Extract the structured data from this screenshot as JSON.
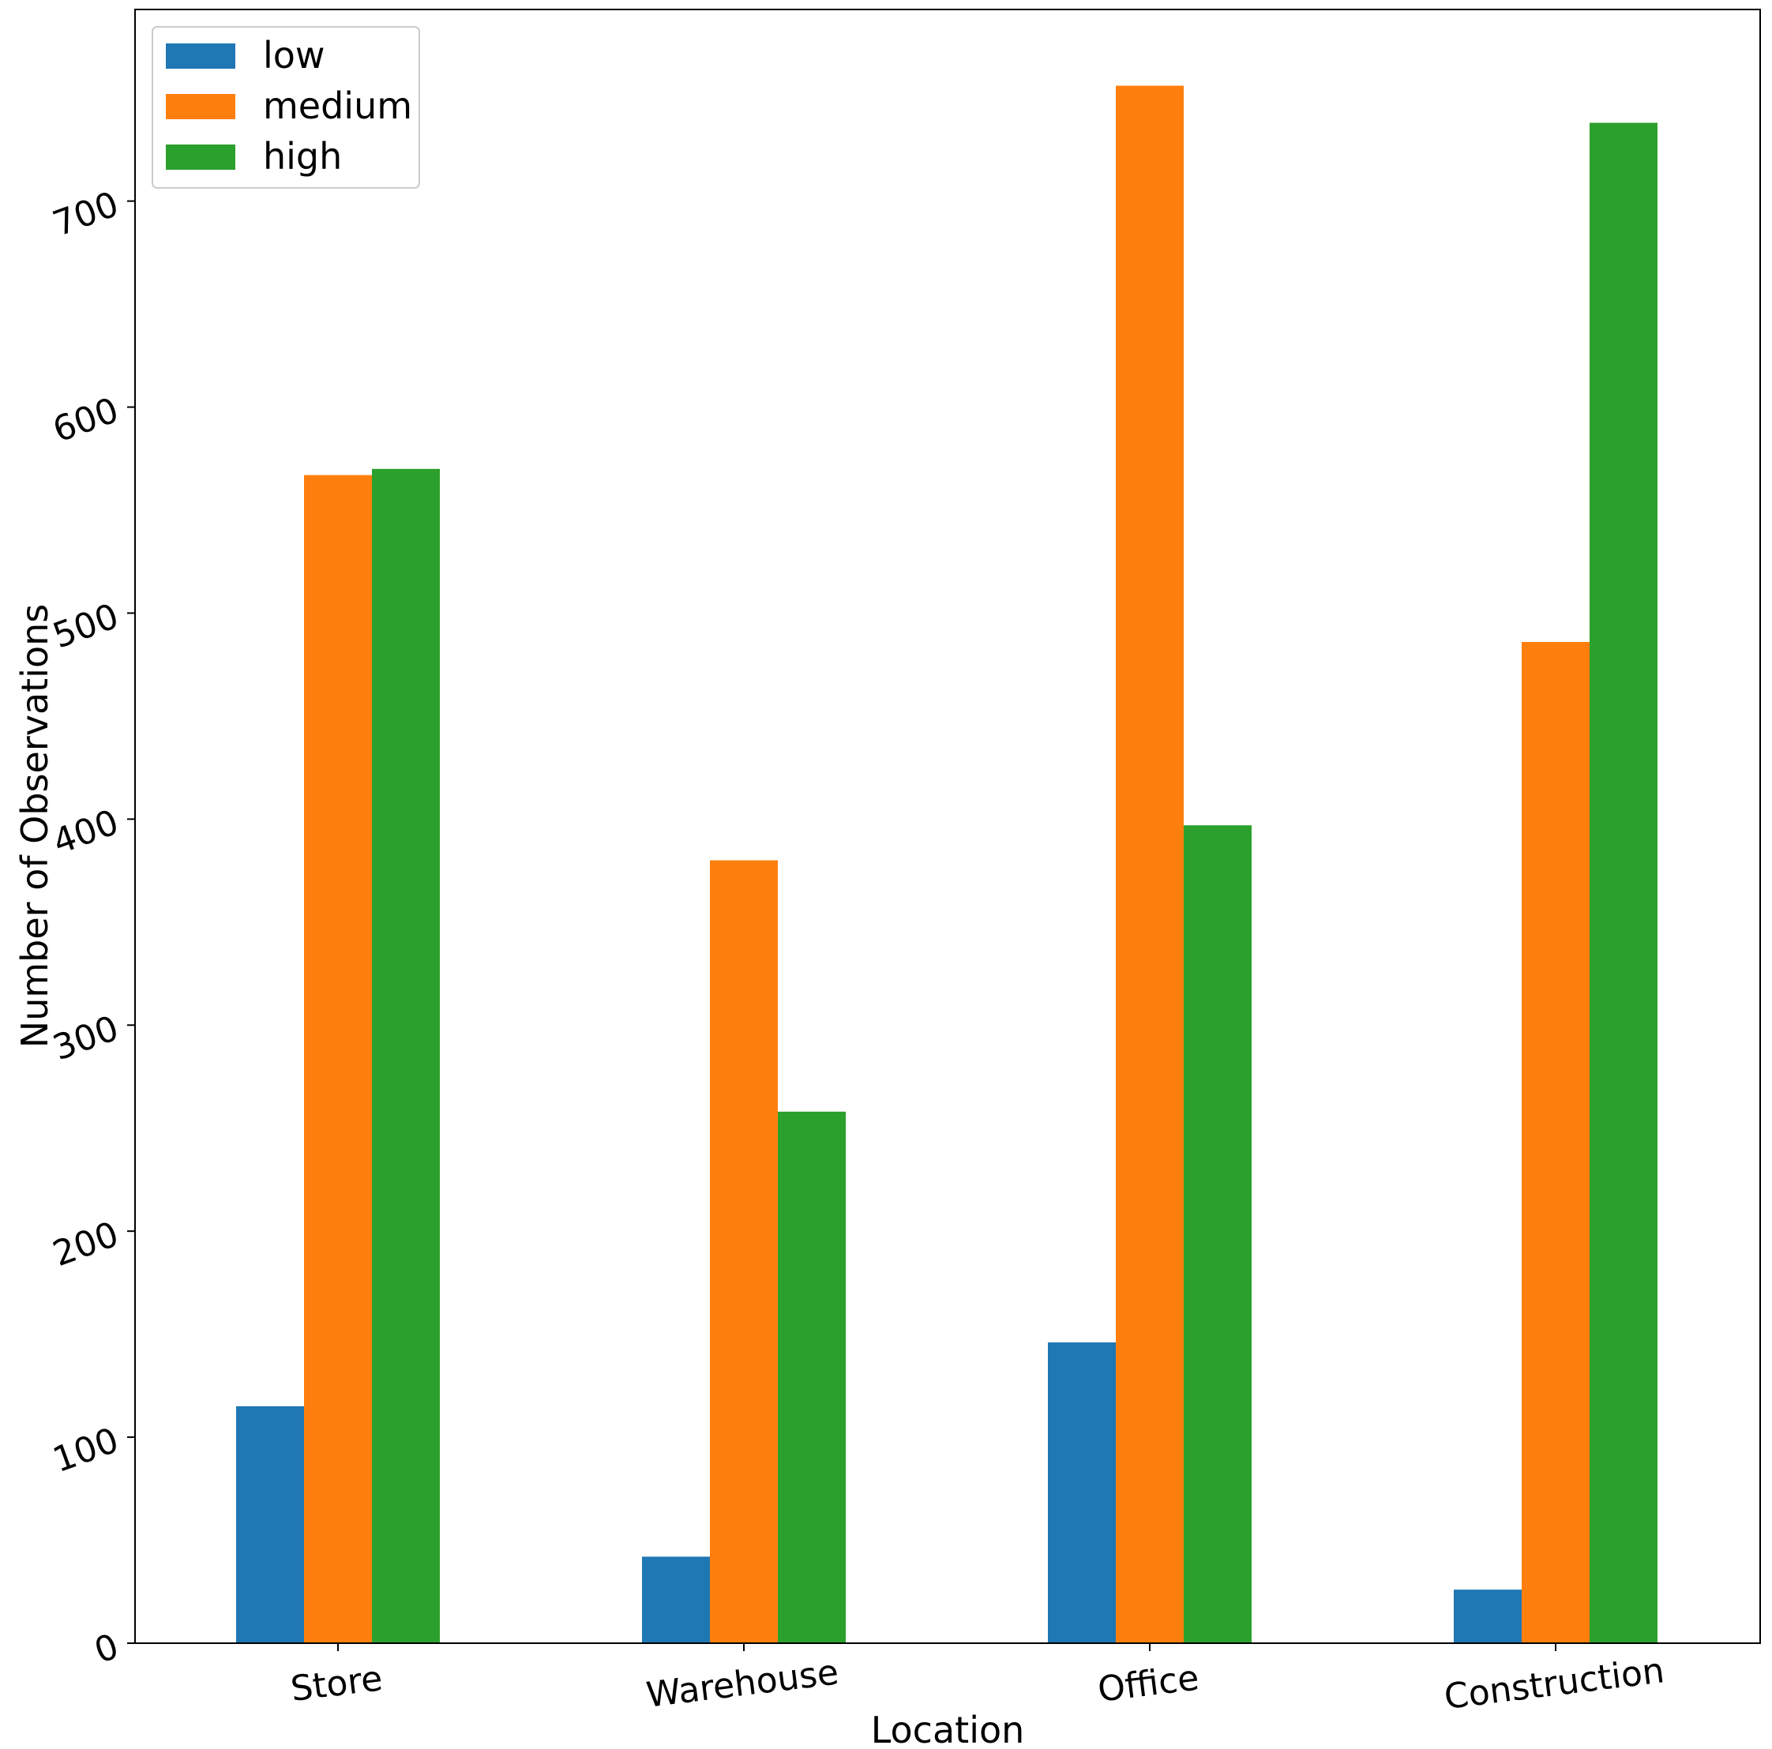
{
  "chart_data": {
    "type": "bar",
    "title": "",
    "xlabel": "Location",
    "ylabel": "Number of Observations",
    "categories": [
      "Store",
      "Warehouse",
      "Office",
      "Construction"
    ],
    "series": [
      {
        "name": "low",
        "color": "#1f77b4",
        "values": [
          115,
          42,
          146,
          26
        ]
      },
      {
        "name": "medium",
        "color": "#ff7f0e",
        "values": [
          567,
          380,
          756,
          486
        ]
      },
      {
        "name": "high",
        "color": "#2ca02c",
        "values": [
          570,
          258,
          397,
          738
        ]
      }
    ],
    "ylim": [
      0,
      793
    ],
    "yticks": [
      0,
      100,
      200,
      300,
      400,
      500,
      600,
      700
    ],
    "legend": {
      "position": "top-left",
      "labels": [
        "low",
        "medium",
        "high"
      ]
    },
    "grid": false
  }
}
